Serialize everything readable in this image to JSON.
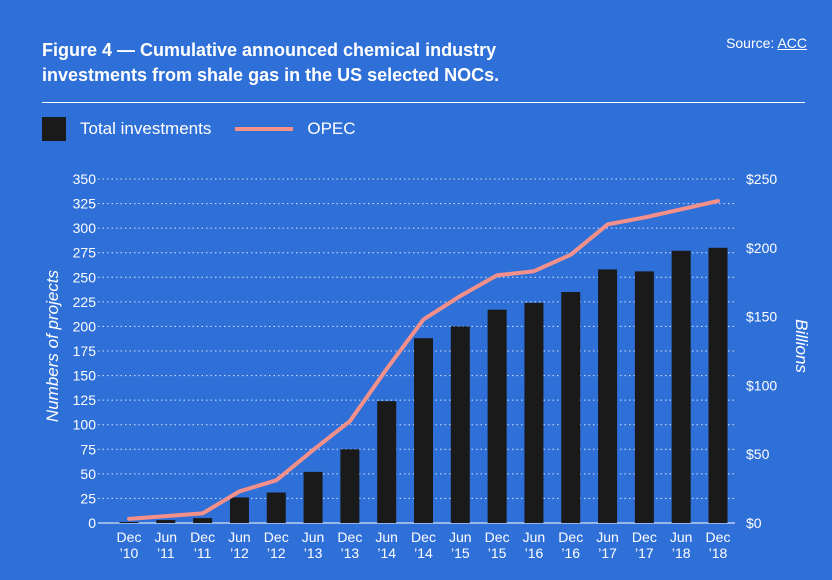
{
  "title": "Figure 4 — Cumulative announced chemical industry investments from shale gas in the US selected NOCs.",
  "source": {
    "label": "Source:",
    "link": "ACC"
  },
  "chart_data": {
    "type": "bar",
    "categories": [
      [
        "Dec",
        "’10"
      ],
      [
        "Jun",
        "’11"
      ],
      [
        "Dec",
        "’11"
      ],
      [
        "Jun",
        "’12"
      ],
      [
        "Dec",
        "’12"
      ],
      [
        "Jun",
        "’13"
      ],
      [
        "Dec",
        "’13"
      ],
      [
        "Jun",
        "’14"
      ],
      [
        "Dec",
        "’14"
      ],
      [
        "Jun",
        "’15"
      ],
      [
        "Dec",
        "’15"
      ],
      [
        "Jun",
        "’16"
      ],
      [
        "Dec",
        "’16"
      ],
      [
        "Jun",
        "’17"
      ],
      [
        "Dec",
        "’17"
      ],
      [
        "Jun",
        "’18"
      ],
      [
        "Dec",
        "’18"
      ]
    ],
    "series": [
      {
        "name": "Total investments",
        "type": "bar",
        "axis": "left",
        "color": "#1a1a1a",
        "values": [
          1,
          3,
          5,
          26,
          31,
          52,
          75,
          124,
          188,
          200,
          217,
          224,
          235,
          258,
          256,
          277,
          280
        ]
      },
      {
        "name": "OPEC",
        "type": "line",
        "axis": "right",
        "color": "#f4908a",
        "values": [
          3,
          5,
          7,
          23,
          31,
          53,
          74,
          112,
          148,
          165,
          180,
          183,
          195,
          217,
          222,
          228,
          234
        ]
      }
    ],
    "ylabel": "Numbers of projects",
    "y2label": "Billions",
    "ylim": [
      0,
      350
    ],
    "yticks": [
      0,
      25,
      50,
      75,
      100,
      125,
      150,
      175,
      200,
      225,
      250,
      275,
      300,
      325,
      350
    ],
    "y2lim": [
      0,
      250
    ],
    "y2ticks": [
      0,
      50,
      100,
      150,
      200,
      250
    ],
    "y2ticklabels": [
      "$0",
      "$50",
      "$100",
      "$150",
      "$200",
      "$250"
    ],
    "grid": "dotted",
    "legend": "top-left"
  }
}
